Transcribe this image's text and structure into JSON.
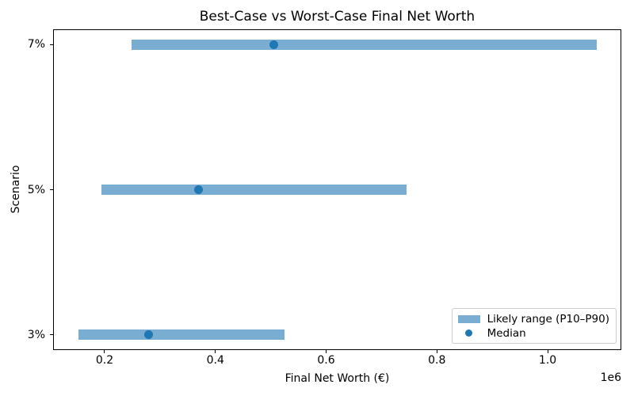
{
  "chart_data": {
    "type": "bar",
    "orientation": "horizontal",
    "title": "Best-Case vs Worst-Case Final Net Worth",
    "xlabel": "Final Net Worth (€)",
    "ylabel": "Scenario",
    "x_offset_text": "1e6",
    "xlim": [
      107000,
      1133000
    ],
    "xticks": [
      200000,
      400000,
      600000,
      800000,
      1000000
    ],
    "xtick_labels": [
      "0.2",
      "0.4",
      "0.6",
      "0.8",
      "1.0"
    ],
    "grid": false,
    "rows": [
      {
        "label": "7%",
        "p10": 248000,
        "median": 505000,
        "p90": 1088000
      },
      {
        "label": "5%",
        "p10": 194000,
        "median": 369000,
        "p90": 745000
      },
      {
        "label": "3%",
        "p10": 153000,
        "median": 279000,
        "p90": 525000
      }
    ],
    "series": [
      {
        "name": "Likely range (P10–P90)",
        "type": "range_bar",
        "color": "#79add2"
      },
      {
        "name": "Median",
        "type": "point",
        "color": "#1f77b4"
      }
    ],
    "legend": {
      "position": "lower right",
      "entries": [
        {
          "label": "Likely range (P10–P90)",
          "swatch": "patch",
          "color": "#79add2"
        },
        {
          "label": "Median",
          "swatch": "dot",
          "color": "#1f77b4"
        }
      ]
    },
    "colors": {
      "range_bar": "#79add2",
      "median_dot": "#1f77b4",
      "background": "#ffffff"
    }
  }
}
